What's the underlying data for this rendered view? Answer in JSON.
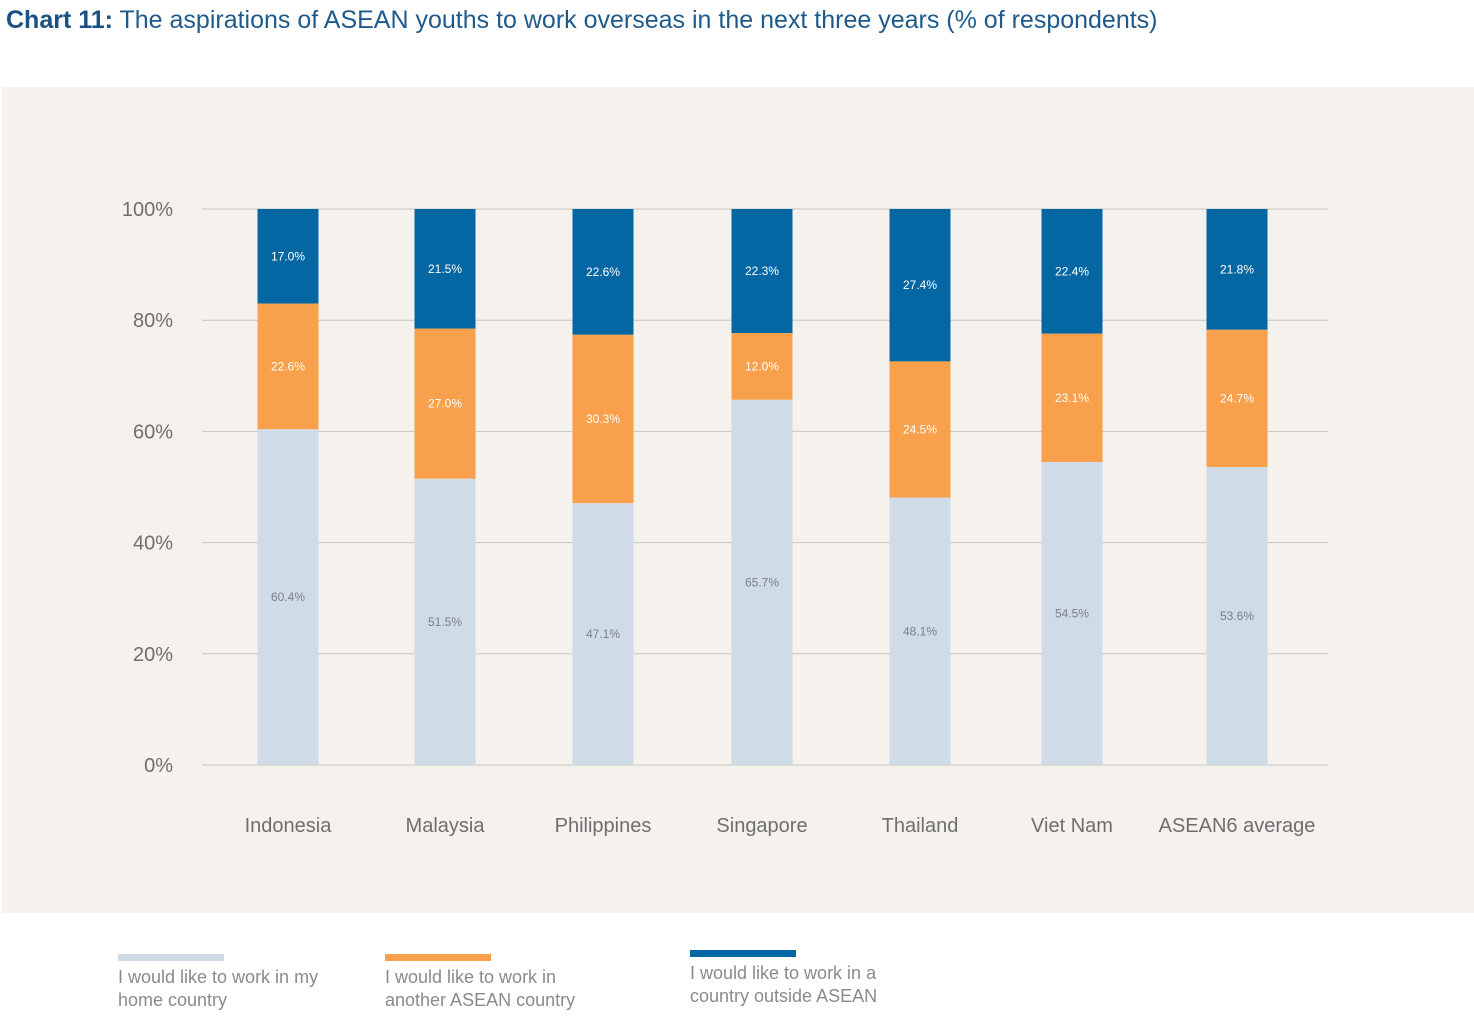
{
  "title": {
    "lead": "Chart 11:",
    "text": "The aspirations of ASEAN youths to work overseas in the next three years (% of respondents)"
  },
  "chart_data": {
    "type": "bar",
    "stacked": true,
    "categories": [
      "Indonesia",
      "Malaysia",
      "Philippines",
      "Singapore",
      "Thailand",
      "Viet Nam",
      "ASEAN6 average"
    ],
    "series": [
      {
        "name": "I would like to work in my home country",
        "color": "#d0dbe8",
        "label_color": "#7a7f86",
        "values": [
          60.4,
          51.5,
          47.1,
          65.7,
          48.1,
          54.5,
          53.6
        ],
        "labels": [
          "60.4%",
          "51.5%",
          "47.1%",
          "65.7%",
          "48.1%",
          "54.5%",
          "53.6%"
        ]
      },
      {
        "name": "I would like to work in another ASEAN country",
        "color": "#f8a04b",
        "label_color": "#ffffff",
        "values": [
          22.6,
          27.0,
          30.3,
          12.0,
          24.5,
          23.1,
          24.7
        ],
        "labels": [
          "22.6%",
          "27.0%",
          "30.3%",
          "12.0%",
          "24.5%",
          "23.1%",
          "24.7%"
        ]
      },
      {
        "name": "I would like to work in a country outside ASEAN",
        "color": "#0467a4",
        "label_color": "#ffffff",
        "values": [
          17.0,
          21.5,
          22.6,
          22.3,
          27.4,
          22.4,
          21.8
        ],
        "labels": [
          "17.0%",
          "21.5%",
          "22.6%",
          "22.3%",
          "27.4%",
          "22.4%",
          "21.8%"
        ]
      }
    ],
    "yticks": [
      "0%",
      "20%",
      "40%",
      "60%",
      "80%",
      "100%"
    ],
    "ylim": [
      0,
      100
    ],
    "grid": true,
    "legend_position": "bottom"
  },
  "legend": [
    {
      "line1": "I would like to work in my",
      "line2": "home country",
      "color": "#d0dbe8"
    },
    {
      "line1": "I would like to work in",
      "line2": "another ASEAN country",
      "color": "#f8a04b"
    },
    {
      "line1": "I would like to work in a",
      "line2": "country outside ASEAN",
      "color": "#0467a4"
    }
  ]
}
